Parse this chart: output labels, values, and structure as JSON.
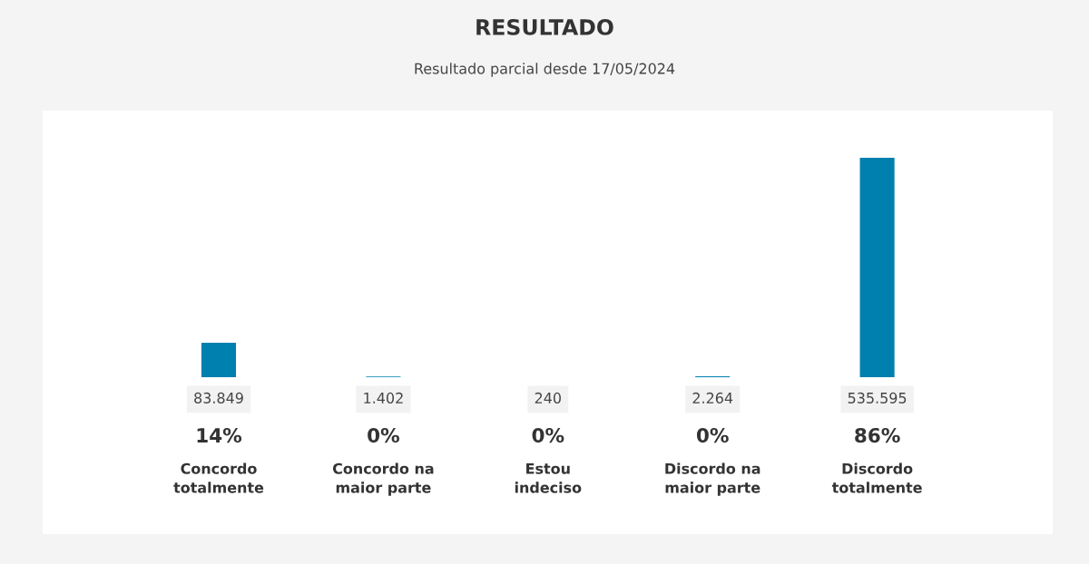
{
  "chart_data": {
    "type": "bar",
    "title": "RESULTADO",
    "subtitle": "Resultado parcial desde 17/05/2024",
    "categories": [
      "Concordo totalmente",
      "Concordo na maior parte",
      "Estou indeciso",
      "Discordo na maior parte",
      "Discordo totalmente"
    ],
    "values": [
      83849,
      1402,
      240,
      2264,
      535595
    ],
    "value_labels": [
      "83.849",
      "1.402",
      "240",
      "2.264",
      "535.595"
    ],
    "color": "#0080ae",
    "annotations": [
      "14%",
      "0%",
      "0%",
      "0%",
      "86%"
    ]
  }
}
